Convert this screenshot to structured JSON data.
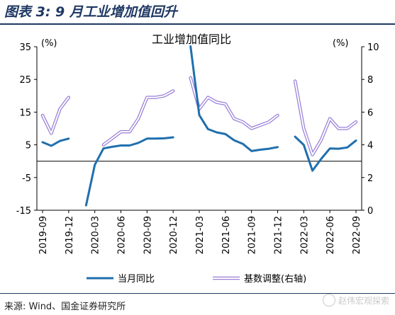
{
  "figure": {
    "title": "图表 3:  9 月工业增加值回升",
    "source": "来源: Wind、国金证券研究所",
    "watermark": "赵伟宏观探索"
  },
  "chart_data": {
    "type": "line",
    "title": "工业增加值同比",
    "y_unit_left": "(%)",
    "y_unit_right": "(%)",
    "ylim_left": [
      -15,
      35
    ],
    "yticks_left": [
      35,
      25,
      15,
      5,
      -5,
      -15
    ],
    "ylim_right": [
      0,
      10
    ],
    "yticks_right": [
      10,
      8,
      6,
      4,
      2,
      0
    ],
    "zero_line_left": 0,
    "x": [
      "2019-09",
      "2019-10",
      "2019-11",
      "2019-12",
      "2020-01",
      "2020-02",
      "2020-03",
      "2020-04",
      "2020-05",
      "2020-06",
      "2020-07",
      "2020-08",
      "2020-09",
      "2020-10",
      "2020-11",
      "2020-12",
      "2021-01",
      "2021-02",
      "2021-03",
      "2021-04",
      "2021-05",
      "2021-06",
      "2021-07",
      "2021-08",
      "2021-09",
      "2021-10",
      "2021-11",
      "2021-12",
      "2022-01",
      "2022-02",
      "2022-03",
      "2022-04",
      "2022-05",
      "2022-06",
      "2022-07",
      "2022-08",
      "2022-09"
    ],
    "xtick_labels": [
      "2019-09",
      "2019-12",
      "2020-03",
      "2020-06",
      "2020-09",
      "2020-12",
      "2021-03",
      "2021-06",
      "2021-09",
      "2021-12",
      "2022-03",
      "2022-06",
      "2022-09"
    ],
    "legend_position": "bottom",
    "series": [
      {
        "name": "当月同比",
        "axis": "left",
        "color": "#1f6fae",
        "values": [
          5.8,
          4.7,
          6.2,
          6.9,
          null,
          -13.5,
          -1.1,
          3.9,
          4.4,
          4.8,
          4.8,
          5.6,
          6.9,
          6.9,
          7.0,
          7.3,
          null,
          35.1,
          14.1,
          9.8,
          8.8,
          8.3,
          6.4,
          5.3,
          3.1,
          3.5,
          3.8,
          4.3,
          null,
          7.5,
          5.0,
          -2.9,
          0.7,
          3.9,
          3.8,
          4.2,
          6.3
        ]
      },
      {
        "name": "基数调整(右轴)",
        "axis": "right",
        "color": "#9a7fd8",
        "values": [
          5.8,
          4.7,
          6.2,
          6.9,
          null,
          null,
          null,
          4.0,
          4.4,
          4.8,
          4.8,
          5.6,
          6.9,
          6.9,
          7.0,
          7.3,
          null,
          8.1,
          6.2,
          6.9,
          6.6,
          6.5,
          5.6,
          5.4,
          5.0,
          5.2,
          5.4,
          5.8,
          null,
          7.9,
          5.0,
          3.4,
          4.3,
          5.6,
          5.0,
          5.0,
          5.4
        ]
      }
    ]
  }
}
